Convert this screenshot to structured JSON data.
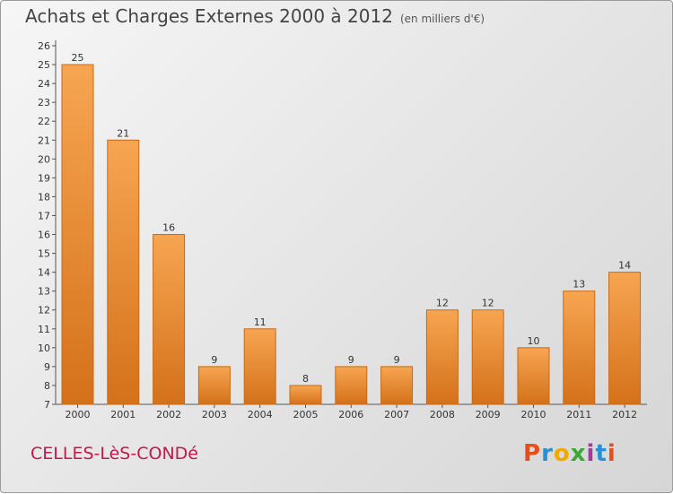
{
  "header": {
    "title": "Achats et Charges Externes 2000 à 2012",
    "unit": "(en milliers d'€)"
  },
  "footer": {
    "commune": "CELLES-LèS-CONDé",
    "logo_text": "Proxiti",
    "logo_colors": [
      "#e84e1b",
      "#2b8fd6",
      "#f2a900",
      "#3aa935",
      "#9c3d97",
      "#2b8fd6",
      "#e84e1b"
    ]
  },
  "colors": {
    "bar": "#f08c28",
    "bar_light": "#f7a95a",
    "bar_dark": "#d06e15",
    "title": "#444444",
    "commune": "#c2184b"
  },
  "chart_data": {
    "type": "bar",
    "title": "Achats et Charges Externes 2000 à 2012",
    "subtitle": "(en milliers d'€)",
    "categories": [
      "2000",
      "2001",
      "2002",
      "2003",
      "2004",
      "2005",
      "2006",
      "2007",
      "2008",
      "2009",
      "2010",
      "2011",
      "2012"
    ],
    "values": [
      25,
      21,
      16,
      9,
      11,
      8,
      9,
      9,
      12,
      12,
      10,
      13,
      14
    ],
    "ylim": [
      7,
      26
    ],
    "yticks": [
      "7",
      "8",
      "9",
      "10",
      "11",
      "12",
      "13",
      "14",
      "15",
      "16",
      "17",
      "18",
      "19",
      "20",
      "21",
      "22",
      "23",
      "24",
      "25",
      "26"
    ],
    "grid": false,
    "legend": "none"
  }
}
